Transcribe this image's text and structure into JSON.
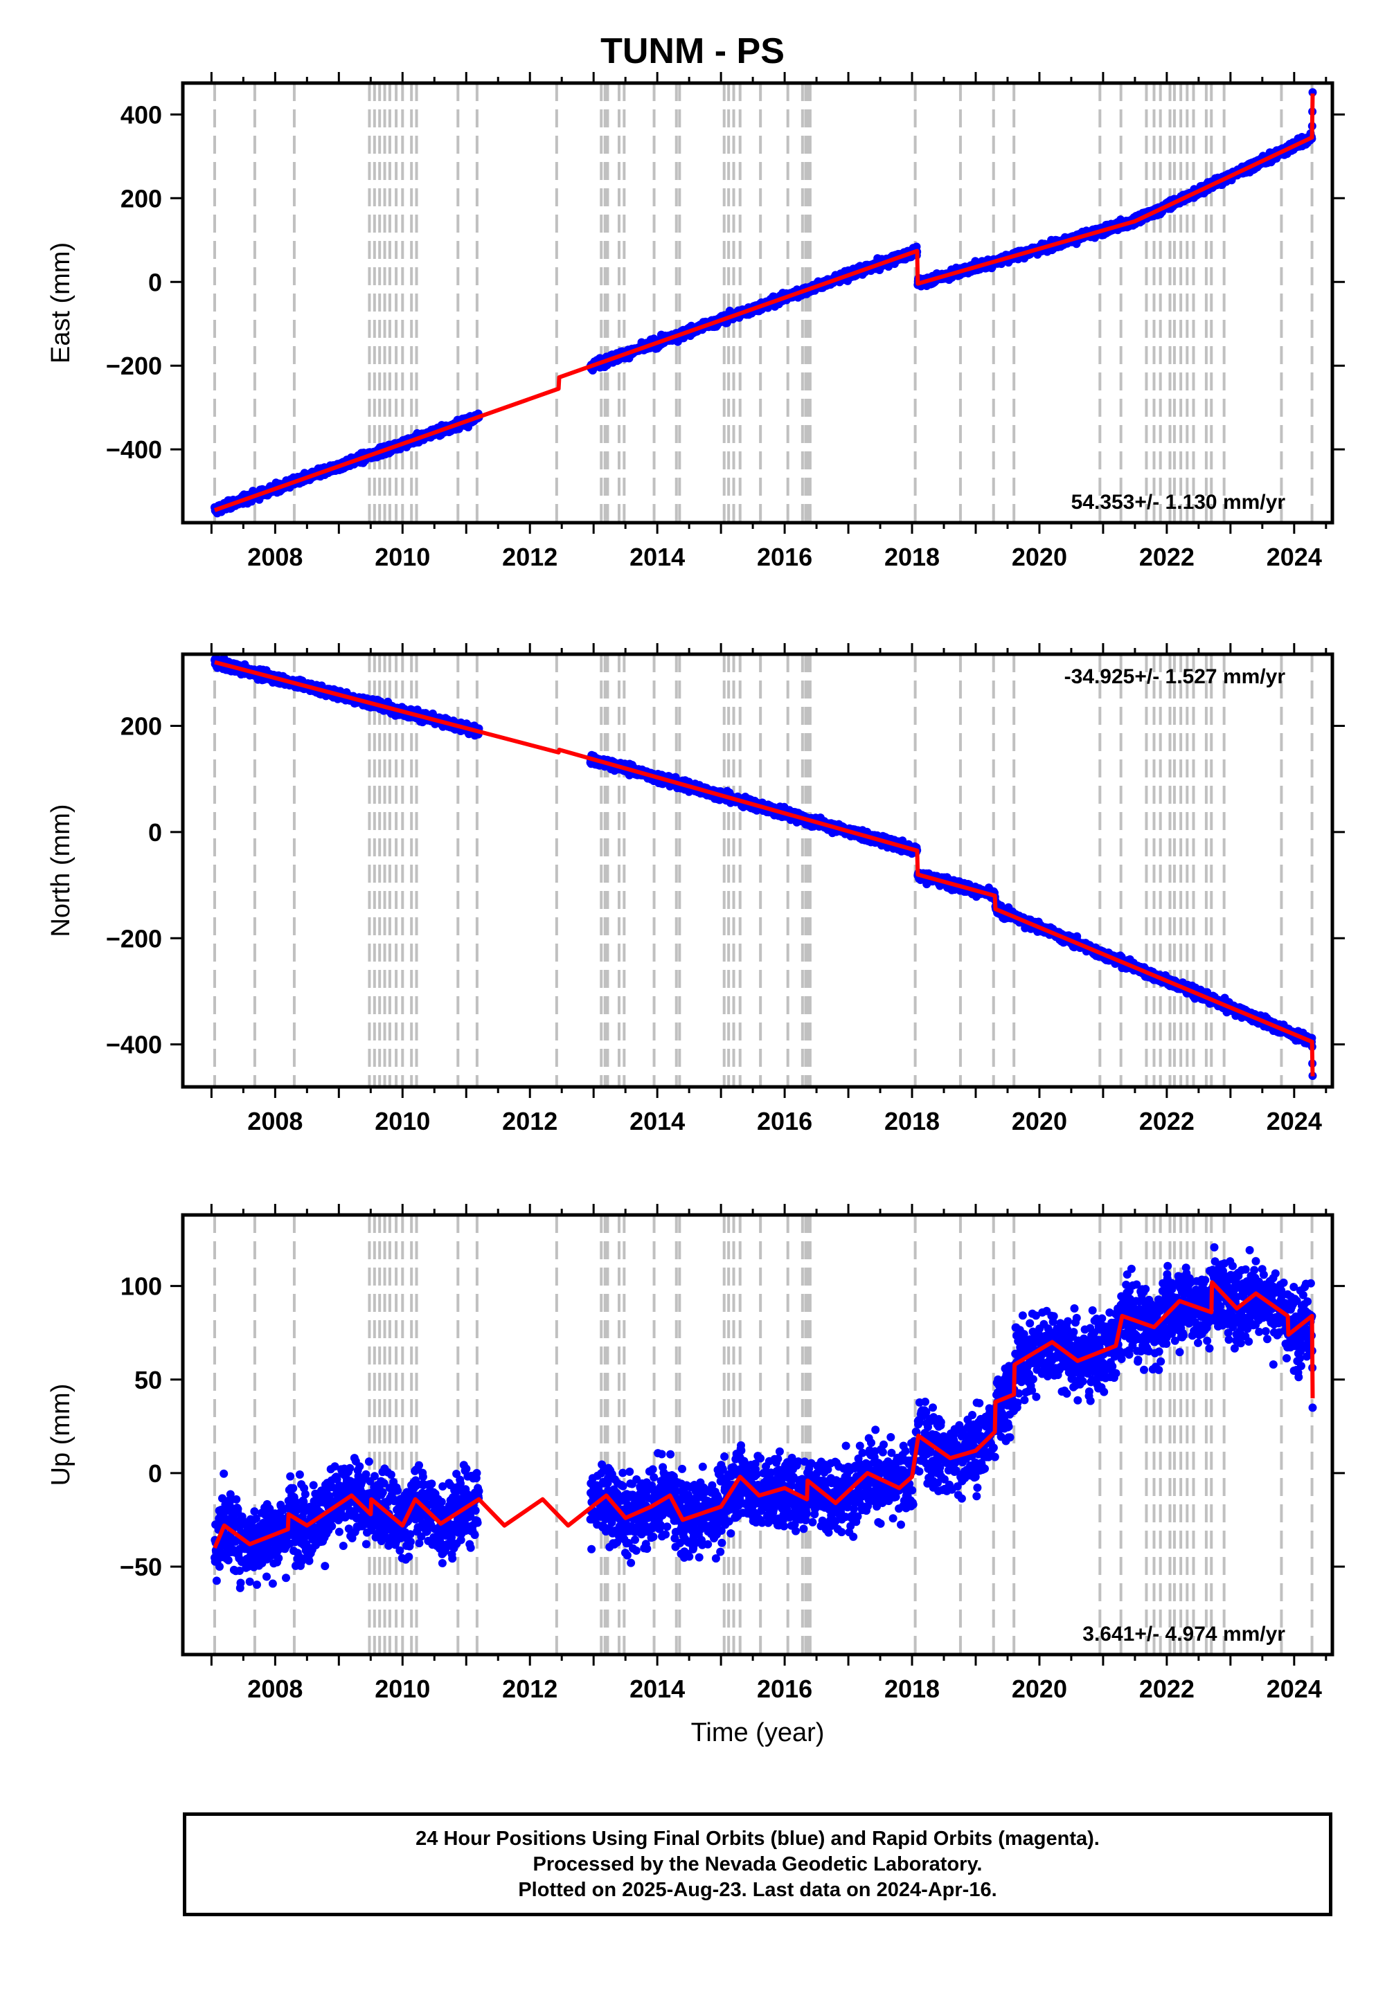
{
  "title": "TUNM - PS",
  "footer": {
    "line1": "24 Hour Positions Using Final Orbits (blue) and Rapid Orbits (magenta).",
    "line2": "Processed by the Nevada Geodetic Laboratory.",
    "line3": "Plotted on 2025-Aug-23. Last data on 2024-Apr-16."
  },
  "colors": {
    "data": "#0000ff",
    "model": "#ff0000",
    "steps": "#c0c0c0"
  },
  "chart_data": [
    {
      "type": "scatter",
      "name": "east",
      "ylabel": "East (mm)",
      "xlabel": "",
      "xlim": [
        2006.55,
        2024.6
      ],
      "ylim": [
        -575,
        475
      ],
      "xticks": [
        2008,
        2010,
        2012,
        2014,
        2016,
        2018,
        2020,
        2022,
        2024
      ],
      "yticks": [
        -400,
        -200,
        0,
        200,
        400
      ],
      "rate": "54.353+/- 1.130 mm/yr",
      "rate_pos": "bottom-right",
      "model": [
        [
          2007.05,
          -545
        ],
        [
          2012.45,
          -255
        ],
        [
          2012.46,
          -228
        ],
        [
          2018.08,
          74
        ],
        [
          2018.09,
          -4
        ],
        [
          2021.5,
          145
        ],
        [
          2024.28,
          345
        ],
        [
          2024.29,
          450
        ]
      ],
      "data_segments": [
        [
          2007.05,
          2011.2
        ],
        [
          2012.95,
          2018.08
        ],
        [
          2018.09,
          2024.29
        ]
      ],
      "noise": 7
    },
    {
      "type": "scatter",
      "name": "north",
      "ylabel": "North (mm)",
      "xlabel": "",
      "xlim": [
        2006.55,
        2024.6
      ],
      "ylim": [
        -480,
        335
      ],
      "xticks": [
        2008,
        2010,
        2012,
        2014,
        2016,
        2018,
        2020,
        2022,
        2024
      ],
      "yticks": [
        -400,
        -200,
        0,
        200
      ],
      "rate": "-34.925+/- 1.527 mm/yr",
      "rate_pos": "top-right",
      "model": [
        [
          2007.05,
          320
        ],
        [
          2012.45,
          150
        ],
        [
          2012.46,
          155
        ],
        [
          2018.08,
          -35
        ],
        [
          2018.09,
          -80
        ],
        [
          2019.3,
          -120
        ],
        [
          2019.31,
          -145
        ],
        [
          2024.28,
          -395
        ],
        [
          2024.29,
          -460
        ]
      ],
      "data_segments": [
        [
          2007.05,
          2011.2
        ],
        [
          2012.95,
          2018.08
        ],
        [
          2018.09,
          2024.29
        ]
      ],
      "noise": 6
    },
    {
      "type": "scatter",
      "name": "up",
      "ylabel": "Up (mm)",
      "xlabel": "Time (year)",
      "xlim": [
        2006.55,
        2024.6
      ],
      "ylim": [
        -97,
        138
      ],
      "xticks": [
        2008,
        2010,
        2012,
        2014,
        2016,
        2018,
        2020,
        2022,
        2024
      ],
      "yticks": [
        -50,
        0,
        50,
        100
      ],
      "rate": "3.641+/- 4.974 mm/yr",
      "rate_pos": "bottom-right",
      "model": [
        [
          2007.05,
          -40
        ],
        [
          2007.2,
          -28
        ],
        [
          2007.6,
          -38
        ],
        [
          2008.2,
          -30
        ],
        [
          2008.21,
          -22
        ],
        [
          2008.5,
          -28
        ],
        [
          2009.2,
          -12
        ],
        [
          2009.5,
          -22
        ],
        [
          2009.51,
          -14
        ],
        [
          2010.0,
          -28
        ],
        [
          2010.2,
          -14
        ],
        [
          2010.6,
          -27
        ],
        [
          2011.2,
          -14
        ],
        [
          2011.6,
          -28
        ],
        [
          2012.2,
          -14
        ],
        [
          2012.6,
          -28
        ],
        [
          2013.2,
          -12
        ],
        [
          2013.5,
          -24
        ],
        [
          2013.9,
          -18
        ],
        [
          2014.2,
          -12
        ],
        [
          2014.4,
          -25
        ],
        [
          2015.0,
          -18
        ],
        [
          2015.3,
          -2
        ],
        [
          2015.6,
          -12
        ],
        [
          2016.0,
          -8
        ],
        [
          2016.35,
          -14
        ],
        [
          2016.36,
          -4
        ],
        [
          2016.8,
          -16
        ],
        [
          2017.3,
          0
        ],
        [
          2017.8,
          -8
        ],
        [
          2018.0,
          -2
        ],
        [
          2018.1,
          20
        ],
        [
          2018.6,
          8
        ],
        [
          2019.0,
          12
        ],
        [
          2019.3,
          22
        ],
        [
          2019.31,
          38
        ],
        [
          2019.6,
          42
        ],
        [
          2019.61,
          58
        ],
        [
          2020.2,
          70
        ],
        [
          2020.6,
          60
        ],
        [
          2021.2,
          68
        ],
        [
          2021.3,
          84
        ],
        [
          2021.8,
          78
        ],
        [
          2022.2,
          92
        ],
        [
          2022.7,
          86
        ],
        [
          2022.71,
          102
        ],
        [
          2023.1,
          88
        ],
        [
          2023.4,
          96
        ],
        [
          2023.9,
          84
        ],
        [
          2023.91,
          74
        ],
        [
          2024.28,
          84
        ],
        [
          2024.29,
          40
        ]
      ],
      "data_segments": [
        [
          2007.05,
          2011.2
        ],
        [
          2012.95,
          2018.08
        ],
        [
          2018.09,
          2024.29
        ]
      ],
      "noise": 14
    }
  ],
  "step_years": [
    2007.05,
    2007.68,
    2008.3,
    2009.48,
    2009.56,
    2009.64,
    2009.72,
    2009.8,
    2009.9,
    2010.0,
    2010.14,
    2010.22,
    2010.87,
    2011.17,
    2012.42,
    2013.12,
    2013.18,
    2013.22,
    2013.4,
    2013.48,
    2013.95,
    2014.3,
    2014.35,
    2015.05,
    2015.12,
    2015.2,
    2015.3,
    2015.62,
    2016.05,
    2016.28,
    2016.33,
    2016.36,
    2016.4,
    2018.05,
    2018.76,
    2019.28,
    2019.6,
    2020.95,
    2021.28,
    2021.68,
    2021.8,
    2021.9,
    2022.05,
    2022.12,
    2022.22,
    2022.32,
    2022.42,
    2022.62,
    2022.7,
    2022.9,
    2023.8,
    2024.28
  ]
}
